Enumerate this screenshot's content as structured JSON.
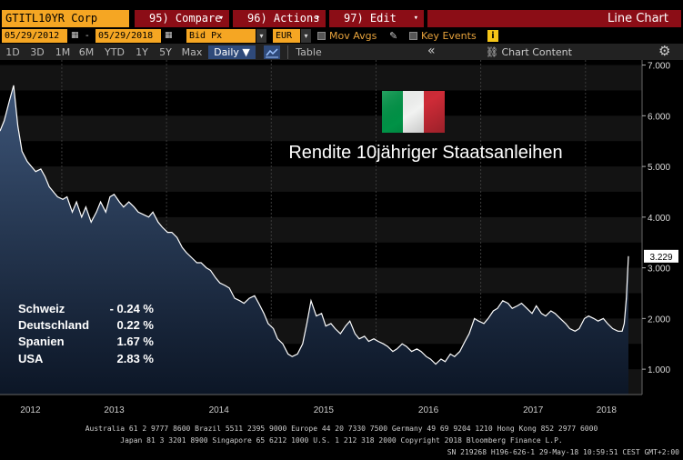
{
  "header": {
    "ticker": "GTITL10YR Corp",
    "menus": [
      {
        "label": "95) Compare"
      },
      {
        "label": "96) Actions"
      },
      {
        "label": "97) Edit"
      }
    ],
    "chart_type_label": "Line Chart"
  },
  "controls": {
    "start_date": "05/29/2012",
    "end_date": "05/29/2018",
    "field": "Bid Px",
    "currency": "EUR",
    "mov_avgs_label": "Mov Avgs",
    "key_events_label": "Key Events",
    "info_label": "i"
  },
  "ranges": [
    "1D",
    "3D",
    "1M",
    "6M",
    "YTD",
    "1Y",
    "5Y",
    "Max"
  ],
  "frequency": "Daily ▼",
  "table_label": "Table",
  "collapse_label": "«",
  "chart_content_label": "Chart Content",
  "annotation_title": "Rendite 10jähriger Staatsanleihen",
  "last_value_label": "3.229",
  "comparison_table": [
    {
      "country": "Schweiz",
      "value": "- 0.24 %"
    },
    {
      "country": "Deutschland",
      "value": "0.22 %"
    },
    {
      "country": "Spanien",
      "value": "1.67 %"
    },
    {
      "country": "USA",
      "value": "2.83 %"
    }
  ],
  "footer": {
    "line1": "Australia 61 2 9777 8600 Brazil 5511 2395 9000 Europe 44 20 7330 7500 Germany 49 69 9204 1210 Hong Kong 852 2977 6000",
    "line2": "Japan 81 3 3201 8900          Singapore 65 6212 1000          U.S. 1 212 318 2000          Copyright 2018 Bloomberg Finance L.P.",
    "line3": "SN 219268 H196-626-1 29-May-18 10:59:51 CEST GMT+2:00"
  },
  "colors": {
    "line": "#ffffff",
    "area_top": "#3d5578",
    "area_bottom": "#0c1626",
    "accent_orange": "#f5a623",
    "menu_red": "#8b0d16"
  },
  "chart_data": {
    "type": "area",
    "x_start": 2012.41,
    "x_end": 2018.41,
    "x_ticks": [
      "2012",
      "2013",
      "2014",
      "2015",
      "2016",
      "2017",
      "2018"
    ],
    "ylim": [
      0.5,
      7.1
    ],
    "y_ticks": [
      "1.000",
      "2.000",
      "3.000",
      "4.000",
      "5.000",
      "6.000",
      "7.000"
    ],
    "grid": true,
    "last_value": 3.229,
    "series": [
      {
        "x": [
          2012.41,
          2012.45,
          2012.5,
          2012.54,
          2012.58,
          2012.62,
          2012.67,
          2012.71,
          2012.75,
          2012.8,
          2012.84,
          2012.88,
          2012.92,
          2012.96,
          2013.01,
          2013.05,
          2013.1,
          2013.14,
          2013.19,
          2013.23,
          2013.28,
          2013.33,
          2013.37,
          2013.42,
          2013.46,
          2013.5,
          2013.55,
          2013.59,
          2013.64,
          2013.69,
          2013.73,
          2013.78,
          2013.83,
          2013.87,
          2013.92,
          2013.96,
          2014.01,
          2014.05,
          2014.1,
          2014.15,
          2014.19,
          2014.24,
          2014.29,
          2014.33,
          2014.38,
          2014.42,
          2014.47,
          2014.51,
          2014.56,
          2014.6,
          2014.65,
          2014.7,
          2014.74,
          2014.79,
          2014.84,
          2014.88,
          2014.93,
          2014.97,
          2015.02,
          2015.06,
          2015.11,
          2015.16,
          2015.2,
          2015.25,
          2015.3,
          2015.34,
          2015.38,
          2015.43,
          2015.48,
          2015.52,
          2015.57,
          2015.61,
          2015.66,
          2015.71,
          2015.75,
          2015.8,
          2015.84,
          2015.89,
          2015.93,
          2015.98,
          2016.02,
          2016.07,
          2016.11,
          2016.16,
          2016.2,
          2016.25,
          2016.29,
          2016.34,
          2016.39,
          2016.43,
          2016.48,
          2016.52,
          2016.57,
          2016.62,
          2016.66,
          2016.71,
          2016.75,
          2016.8,
          2016.85,
          2016.89,
          2016.94,
          2016.98,
          2017.03,
          2017.07,
          2017.12,
          2017.16,
          2017.21,
          2017.26,
          2017.3,
          2017.35,
          2017.39,
          2017.44,
          2017.49,
          2017.53,
          2017.58,
          2017.62,
          2017.67,
          2017.71,
          2017.76,
          2017.81,
          2017.85,
          2017.9,
          2017.94,
          2017.99,
          2018.03,
          2018.08,
          2018.12,
          2018.17,
          2018.21,
          2018.26,
          2018.31,
          2018.35,
          2018.37,
          2018.39,
          2018.41
        ],
        "values": [
          5.7,
          5.9,
          6.3,
          6.6,
          5.8,
          5.3,
          5.1,
          5.0,
          4.9,
          4.95,
          4.8,
          4.6,
          4.5,
          4.4,
          4.35,
          4.4,
          4.1,
          4.3,
          4.0,
          4.2,
          3.9,
          4.1,
          4.3,
          4.1,
          4.4,
          4.45,
          4.3,
          4.2,
          4.3,
          4.2,
          4.1,
          4.05,
          4.0,
          4.1,
          3.9,
          3.8,
          3.7,
          3.7,
          3.6,
          3.4,
          3.3,
          3.2,
          3.1,
          3.1,
          3.0,
          2.95,
          2.8,
          2.7,
          2.65,
          2.6,
          2.4,
          2.35,
          2.3,
          2.4,
          2.45,
          2.3,
          2.1,
          1.9,
          1.8,
          1.6,
          1.5,
          1.3,
          1.25,
          1.3,
          1.5,
          1.9,
          2.35,
          2.05,
          2.1,
          1.85,
          1.9,
          1.8,
          1.7,
          1.85,
          1.95,
          1.7,
          1.6,
          1.65,
          1.55,
          1.6,
          1.55,
          1.5,
          1.45,
          1.35,
          1.4,
          1.5,
          1.45,
          1.35,
          1.4,
          1.35,
          1.25,
          1.2,
          1.1,
          1.2,
          1.15,
          1.3,
          1.25,
          1.35,
          1.55,
          1.7,
          2.0,
          1.95,
          1.9,
          2.0,
          2.15,
          2.2,
          2.35,
          2.3,
          2.2,
          2.25,
          2.3,
          2.2,
          2.1,
          2.25,
          2.1,
          2.05,
          2.15,
          2.1,
          2.0,
          1.9,
          1.8,
          1.75,
          1.8,
          2.0,
          2.05,
          2.0,
          1.95,
          2.0,
          1.9,
          1.8,
          1.75,
          1.75,
          1.9,
          2.4,
          3.229
        ]
      }
    ]
  }
}
